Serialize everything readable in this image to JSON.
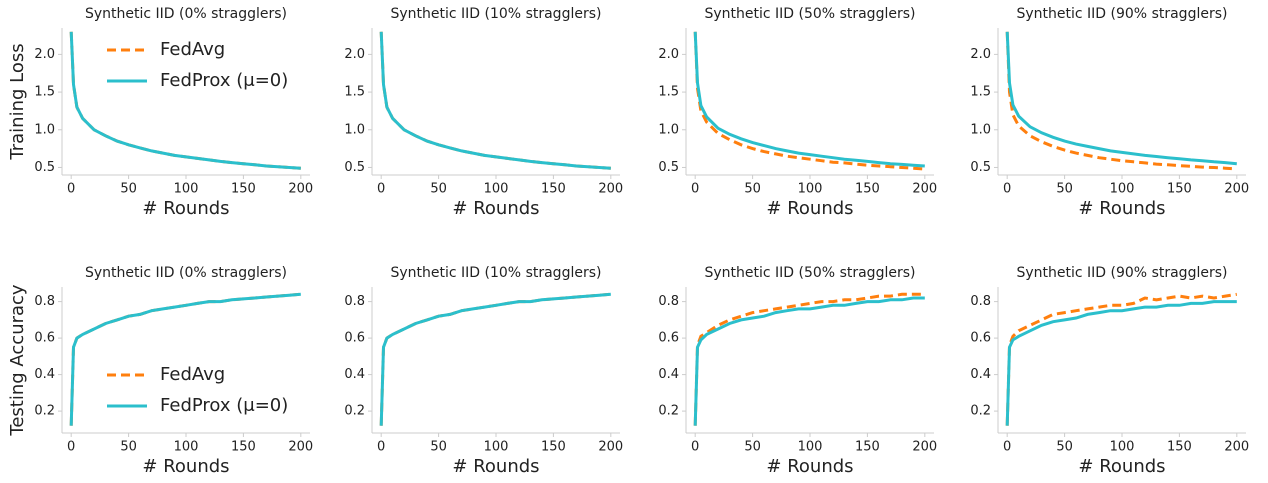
{
  "chart_data": [
    {
      "type": "line",
      "title": "Synthetic IID (0% stragglers)",
      "xlabel": "# Rounds",
      "ylabel": "Training Loss",
      "legend": "upper left",
      "x": [
        0,
        2,
        5,
        10,
        20,
        30,
        40,
        50,
        60,
        70,
        80,
        90,
        100,
        110,
        120,
        130,
        140,
        150,
        160,
        170,
        180,
        190,
        200
      ],
      "series": [
        {
          "name": "FedAvg",
          "color": "#ff7f0e",
          "dash": true,
          "values": [
            2.3,
            1.6,
            1.3,
            1.15,
            1.0,
            0.92,
            0.85,
            0.8,
            0.76,
            0.72,
            0.69,
            0.66,
            0.64,
            0.62,
            0.6,
            0.58,
            0.565,
            0.55,
            0.535,
            0.52,
            0.51,
            0.5,
            0.49
          ]
        },
        {
          "name": "FedProx (μ=0)",
          "color": "#2bbfcc",
          "dash": false,
          "values": [
            2.3,
            1.6,
            1.3,
            1.15,
            1.0,
            0.92,
            0.85,
            0.8,
            0.76,
            0.72,
            0.69,
            0.66,
            0.64,
            0.62,
            0.6,
            0.58,
            0.565,
            0.55,
            0.535,
            0.52,
            0.51,
            0.5,
            0.49
          ]
        }
      ],
      "xlim": [
        -8,
        208
      ],
      "xticks": [
        0,
        50,
        100,
        150,
        200
      ],
      "ylim": [
        0.4,
        2.35
      ],
      "yticks": [
        0.5,
        {
          "value": 1,
          "label": "1.0"
        },
        1.5,
        {
          "value": 2,
          "label": "2.0"
        }
      ]
    },
    {
      "type": "line",
      "title": "Synthetic IID (10% stragglers)",
      "xlabel": "# Rounds",
      "x": [
        0,
        2,
        5,
        10,
        20,
        30,
        40,
        50,
        60,
        70,
        80,
        90,
        100,
        110,
        120,
        130,
        140,
        150,
        160,
        170,
        180,
        190,
        200
      ],
      "series": [
        {
          "name": "FedAvg",
          "color": "#ff7f0e",
          "dash": true,
          "values": [
            2.3,
            1.6,
            1.3,
            1.15,
            1.0,
            0.92,
            0.85,
            0.8,
            0.76,
            0.72,
            0.69,
            0.66,
            0.64,
            0.62,
            0.6,
            0.58,
            0.565,
            0.55,
            0.535,
            0.52,
            0.51,
            0.5,
            0.49
          ]
        },
        {
          "name": "FedProx (μ=0)",
          "color": "#2bbfcc",
          "dash": false,
          "values": [
            2.3,
            1.6,
            1.3,
            1.15,
            1.0,
            0.92,
            0.85,
            0.8,
            0.76,
            0.72,
            0.69,
            0.66,
            0.64,
            0.62,
            0.6,
            0.58,
            0.565,
            0.55,
            0.535,
            0.52,
            0.51,
            0.5,
            0.49
          ]
        }
      ],
      "xlim": [
        -8,
        208
      ],
      "xticks": [
        0,
        50,
        100,
        150,
        200
      ],
      "ylim": [
        0.4,
        2.35
      ],
      "yticks": [
        0.5,
        {
          "value": 1,
          "label": "1.0"
        },
        1.5,
        {
          "value": 2,
          "label": "2.0"
        }
      ]
    },
    {
      "type": "line",
      "title": "Synthetic IID (50% stragglers)",
      "xlabel": "# Rounds",
      "x": [
        0,
        2,
        5,
        10,
        20,
        30,
        40,
        50,
        60,
        70,
        80,
        90,
        100,
        110,
        120,
        130,
        140,
        150,
        160,
        170,
        180,
        190,
        200
      ],
      "series": [
        {
          "name": "FedAvg",
          "color": "#ff7f0e",
          "dash": true,
          "values": [
            2.3,
            1.55,
            1.25,
            1.1,
            0.95,
            0.87,
            0.8,
            0.75,
            0.71,
            0.68,
            0.65,
            0.63,
            0.61,
            0.59,
            0.57,
            0.56,
            0.545,
            0.53,
            0.52,
            0.51,
            0.5,
            0.49,
            0.48
          ]
        },
        {
          "name": "FedProx (μ=0)",
          "color": "#2bbfcc",
          "dash": false,
          "values": [
            2.3,
            1.62,
            1.32,
            1.17,
            1.02,
            0.94,
            0.88,
            0.83,
            0.79,
            0.75,
            0.72,
            0.69,
            0.67,
            0.65,
            0.63,
            0.61,
            0.595,
            0.58,
            0.565,
            0.55,
            0.54,
            0.53,
            0.52
          ]
        }
      ],
      "xlim": [
        -8,
        208
      ],
      "xticks": [
        0,
        50,
        100,
        150,
        200
      ],
      "ylim": [
        0.4,
        2.35
      ],
      "yticks": [
        0.5,
        {
          "value": 1,
          "label": "1.0"
        },
        1.5,
        {
          "value": 2,
          "label": "2.0"
        }
      ]
    },
    {
      "type": "line",
      "title": "Synthetic IID (90% stragglers)",
      "xlabel": "# Rounds",
      "x": [
        0,
        2,
        5,
        10,
        20,
        30,
        40,
        50,
        60,
        70,
        80,
        90,
        100,
        110,
        120,
        130,
        140,
        150,
        160,
        170,
        180,
        190,
        200
      ],
      "series": [
        {
          "name": "FedAvg",
          "color": "#ff7f0e",
          "dash": true,
          "values": [
            2.3,
            1.5,
            1.2,
            1.05,
            0.92,
            0.84,
            0.78,
            0.73,
            0.69,
            0.66,
            0.63,
            0.61,
            0.59,
            0.575,
            0.56,
            0.545,
            0.535,
            0.525,
            0.515,
            0.505,
            0.5,
            0.49,
            0.48
          ]
        },
        {
          "name": "FedProx (μ=0)",
          "color": "#2bbfcc",
          "dash": false,
          "values": [
            2.3,
            1.62,
            1.33,
            1.18,
            1.04,
            0.96,
            0.9,
            0.85,
            0.81,
            0.78,
            0.75,
            0.72,
            0.7,
            0.68,
            0.66,
            0.645,
            0.63,
            0.615,
            0.6,
            0.59,
            0.575,
            0.565,
            0.55
          ]
        }
      ],
      "xlim": [
        -8,
        208
      ],
      "xticks": [
        0,
        50,
        100,
        150,
        200
      ],
      "ylim": [
        0.4,
        2.35
      ],
      "yticks": [
        0.5,
        {
          "value": 1,
          "label": "1.0"
        },
        1.5,
        {
          "value": 2,
          "label": "2.0"
        }
      ]
    },
    {
      "type": "line",
      "title": "Synthetic IID (0% stragglers)",
      "xlabel": "# Rounds",
      "ylabel": "Testing Accuracy",
      "legend": "lower left",
      "x": [
        0,
        2,
        5,
        10,
        20,
        30,
        40,
        50,
        60,
        70,
        80,
        90,
        100,
        110,
        120,
        130,
        140,
        150,
        160,
        170,
        180,
        190,
        200
      ],
      "series": [
        {
          "name": "FedAvg",
          "color": "#ff7f0e",
          "dash": true,
          "values": [
            0.12,
            0.55,
            0.6,
            0.62,
            0.65,
            0.68,
            0.7,
            0.72,
            0.73,
            0.75,
            0.76,
            0.77,
            0.78,
            0.79,
            0.8,
            0.8,
            0.81,
            0.815,
            0.82,
            0.825,
            0.83,
            0.835,
            0.84
          ]
        },
        {
          "name": "FedProx (μ=0)",
          "color": "#2bbfcc",
          "dash": false,
          "values": [
            0.12,
            0.55,
            0.6,
            0.62,
            0.65,
            0.68,
            0.7,
            0.72,
            0.73,
            0.75,
            0.76,
            0.77,
            0.78,
            0.79,
            0.8,
            0.8,
            0.81,
            0.815,
            0.82,
            0.825,
            0.83,
            0.835,
            0.84
          ]
        }
      ],
      "xlim": [
        -8,
        208
      ],
      "xticks": [
        0,
        50,
        100,
        150,
        200
      ],
      "ylim": [
        0.08,
        0.88
      ],
      "yticks": [
        0.2,
        0.4,
        0.6,
        0.8
      ]
    },
    {
      "type": "line",
      "title": "Synthetic IID (10% stragglers)",
      "xlabel": "# Rounds",
      "x": [
        0,
        2,
        5,
        10,
        20,
        30,
        40,
        50,
        60,
        70,
        80,
        90,
        100,
        110,
        120,
        130,
        140,
        150,
        160,
        170,
        180,
        190,
        200
      ],
      "series": [
        {
          "name": "FedAvg",
          "color": "#ff7f0e",
          "dash": true,
          "values": [
            0.12,
            0.55,
            0.6,
            0.62,
            0.65,
            0.68,
            0.7,
            0.72,
            0.73,
            0.75,
            0.76,
            0.77,
            0.78,
            0.79,
            0.8,
            0.8,
            0.81,
            0.815,
            0.82,
            0.825,
            0.83,
            0.835,
            0.84
          ]
        },
        {
          "name": "FedProx (μ=0)",
          "color": "#2bbfcc",
          "dash": false,
          "values": [
            0.12,
            0.55,
            0.6,
            0.62,
            0.65,
            0.68,
            0.7,
            0.72,
            0.73,
            0.75,
            0.76,
            0.77,
            0.78,
            0.79,
            0.8,
            0.8,
            0.81,
            0.815,
            0.82,
            0.825,
            0.83,
            0.835,
            0.84
          ]
        }
      ],
      "xlim": [
        -8,
        208
      ],
      "xticks": [
        0,
        50,
        100,
        150,
        200
      ],
      "ylim": [
        0.08,
        0.88
      ],
      "yticks": [
        0.2,
        0.4,
        0.6,
        0.8
      ]
    },
    {
      "type": "line",
      "title": "Synthetic IID (50% stragglers)",
      "xlabel": "# Rounds",
      "x": [
        0,
        2,
        5,
        10,
        20,
        30,
        40,
        50,
        60,
        70,
        80,
        90,
        100,
        110,
        120,
        130,
        140,
        150,
        160,
        170,
        180,
        190,
        200
      ],
      "series": [
        {
          "name": "FedAvg",
          "color": "#ff7f0e",
          "dash": true,
          "values": [
            0.12,
            0.56,
            0.61,
            0.63,
            0.67,
            0.7,
            0.72,
            0.74,
            0.75,
            0.76,
            0.77,
            0.78,
            0.79,
            0.8,
            0.8,
            0.81,
            0.81,
            0.82,
            0.83,
            0.83,
            0.84,
            0.84,
            0.84
          ]
        },
        {
          "name": "FedProx (μ=0)",
          "color": "#2bbfcc",
          "dash": false,
          "values": [
            0.12,
            0.55,
            0.59,
            0.62,
            0.65,
            0.68,
            0.7,
            0.71,
            0.72,
            0.74,
            0.75,
            0.76,
            0.76,
            0.77,
            0.78,
            0.78,
            0.79,
            0.8,
            0.8,
            0.81,
            0.81,
            0.82,
            0.82
          ]
        }
      ],
      "xlim": [
        -8,
        208
      ],
      "xticks": [
        0,
        50,
        100,
        150,
        200
      ],
      "ylim": [
        0.08,
        0.88
      ],
      "yticks": [
        0.2,
        0.4,
        0.6,
        0.8
      ]
    },
    {
      "type": "line",
      "title": "Synthetic IID (90% stragglers)",
      "xlabel": "# Rounds",
      "x": [
        0,
        2,
        5,
        10,
        20,
        30,
        40,
        50,
        60,
        70,
        80,
        90,
        100,
        110,
        120,
        130,
        140,
        150,
        160,
        170,
        180,
        190,
        200
      ],
      "series": [
        {
          "name": "FedAvg",
          "color": "#ff7f0e",
          "dash": true,
          "values": [
            0.12,
            0.56,
            0.61,
            0.64,
            0.67,
            0.7,
            0.73,
            0.74,
            0.75,
            0.76,
            0.77,
            0.78,
            0.78,
            0.79,
            0.82,
            0.81,
            0.82,
            0.83,
            0.82,
            0.83,
            0.82,
            0.83,
            0.84
          ]
        },
        {
          "name": "FedProx (μ=0)",
          "color": "#2bbfcc",
          "dash": false,
          "values": [
            0.12,
            0.55,
            0.59,
            0.61,
            0.64,
            0.67,
            0.69,
            0.7,
            0.71,
            0.73,
            0.74,
            0.75,
            0.75,
            0.76,
            0.77,
            0.77,
            0.78,
            0.78,
            0.79,
            0.79,
            0.8,
            0.8,
            0.8
          ]
        }
      ],
      "xlim": [
        -8,
        208
      ],
      "xticks": [
        0,
        50,
        100,
        150,
        200
      ],
      "ylim": [
        0.08,
        0.88
      ],
      "yticks": [
        0.2,
        0.4,
        0.6,
        0.8
      ]
    }
  ]
}
